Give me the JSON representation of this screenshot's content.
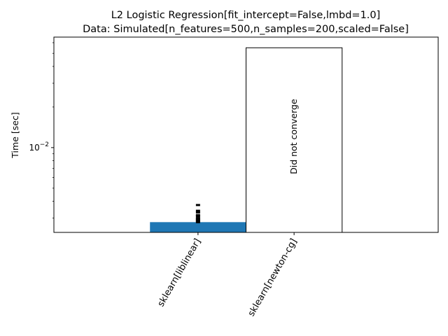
{
  "chart_data": {
    "type": "bar",
    "title": "L2 Logistic Regression[fit_intercept=False,lmbd=1.0]",
    "subtitle": "Data: Simulated[n_features=500,n_samples=200,scaled=False]",
    "xlabel": "",
    "ylabel": "Time [sec]",
    "yscale": "log",
    "ylim": [
      0.00235,
      0.066
    ],
    "yticks": [
      {
        "value": 0.01,
        "base": "10",
        "exponent": "−2"
      }
    ],
    "categories": [
      "sklearn[liblinear]",
      "sklearn[newton-cg]"
    ],
    "values": [
      0.0028,
      0.055
    ],
    "bar_colors": [
      "#1f77b4",
      "#ffffff"
    ],
    "annotations": [
      "",
      "Did not converge"
    ],
    "run_points": [
      [
        0.0028,
        0.00285,
        0.0029,
        0.00295,
        0.003,
        0.0031,
        0.00315,
        0.0033,
        0.0034,
        0.00375
      ]
    ],
    "grid": false
  }
}
